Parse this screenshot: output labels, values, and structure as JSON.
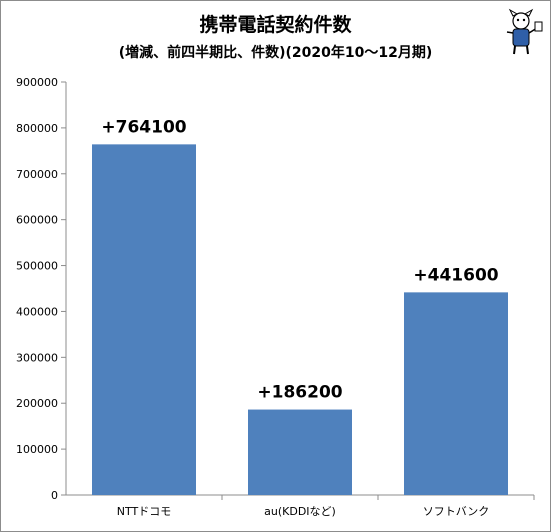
{
  "chart_data": {
    "type": "bar",
    "title": "携帯電話契約件数",
    "subtitle": "(増減、前四半期比、件数)(2020年10～12月期)",
    "categories": [
      "NTTドコモ",
      "au(KDDIなど)",
      "ソフトバンク"
    ],
    "values": [
      764100,
      186200,
      441600
    ],
    "data_labels": [
      "+764100",
      "+186200",
      "+441600"
    ],
    "ylim": [
      0,
      900000
    ],
    "yticks": [
      0,
      100000,
      200000,
      300000,
      400000,
      500000,
      600000,
      700000,
      800000,
      900000
    ],
    "grid": false,
    "legend": "none",
    "bar_color": "#4f81bd"
  }
}
